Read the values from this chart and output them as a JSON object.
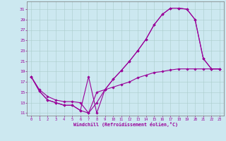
{
  "xlabel": "Windchill (Refroidissement éolien,°C)",
  "xlim": [
    -0.5,
    23.5
  ],
  "ylim": [
    10.5,
    32.5
  ],
  "yticks": [
    11,
    13,
    15,
    17,
    19,
    21,
    23,
    25,
    27,
    29,
    31
  ],
  "xticks": [
    0,
    1,
    2,
    3,
    4,
    5,
    6,
    7,
    8,
    9,
    10,
    11,
    12,
    13,
    14,
    15,
    16,
    17,
    18,
    19,
    20,
    21,
    22,
    23
  ],
  "bg_color": "#cce8f0",
  "line_color": "#990099",
  "grid_color": "#aacccc",
  "line1_x": [
    0,
    1,
    2,
    3,
    4,
    5,
    6,
    7,
    8,
    9,
    10,
    11,
    12,
    13,
    14,
    15,
    16,
    17,
    18,
    19,
    20,
    21,
    22,
    23
  ],
  "line1_y": [
    18.0,
    15.2,
    13.5,
    13.0,
    12.5,
    12.5,
    11.5,
    11.0,
    13.0,
    15.5,
    17.5,
    19.2,
    21.0,
    23.0,
    25.2,
    28.0,
    30.0,
    31.2,
    31.2,
    31.0,
    29.0,
    21.5,
    19.5,
    19.5
  ],
  "line2_x": [
    0,
    1,
    2,
    3,
    4,
    5,
    6,
    7,
    8,
    9,
    10,
    11,
    12,
    13,
    14,
    15,
    16,
    17,
    18,
    19,
    20,
    21,
    22,
    23
  ],
  "line2_y": [
    18.0,
    15.2,
    13.5,
    13.0,
    12.5,
    12.5,
    11.5,
    18.0,
    11.0,
    15.5,
    17.5,
    19.2,
    21.0,
    23.0,
    25.2,
    28.0,
    30.0,
    31.2,
    31.2,
    31.0,
    29.0,
    21.5,
    19.5,
    19.5
  ],
  "line3_x": [
    0,
    1,
    2,
    3,
    4,
    5,
    6,
    7,
    8,
    9,
    10,
    11,
    12,
    13,
    14,
    15,
    16,
    17,
    18,
    19,
    20,
    21,
    22,
    23
  ],
  "line3_y": [
    18.0,
    15.5,
    14.2,
    13.5,
    13.2,
    13.2,
    13.0,
    11.0,
    15.0,
    15.5,
    16.0,
    16.5,
    17.0,
    17.8,
    18.3,
    18.8,
    19.0,
    19.3,
    19.5,
    19.5,
    19.5,
    19.5,
    19.5,
    19.5
  ]
}
